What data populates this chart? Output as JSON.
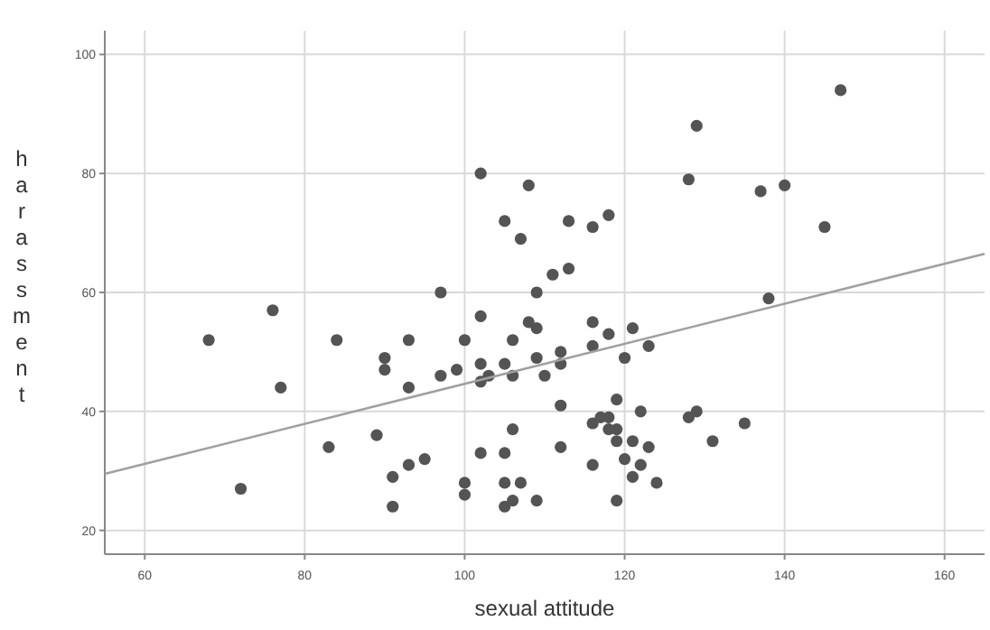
{
  "chart_data": {
    "type": "scatter",
    "xlabel": "sexual attitude",
    "ylabel": "harassment",
    "xlim": [
      55,
      165
    ],
    "ylim": [
      16,
      104
    ],
    "xticks": [
      60,
      80,
      100,
      120,
      140,
      160
    ],
    "yticks": [
      20,
      40,
      60,
      80,
      100
    ],
    "grid": true,
    "series": [
      {
        "marker": "circle",
        "color": "#545454",
        "x": [
          68,
          72,
          76,
          77,
          83,
          84,
          89,
          90,
          90,
          91,
          91,
          93,
          93,
          93,
          95,
          97,
          97,
          99,
          100,
          100,
          100,
          102,
          102,
          102,
          102,
          102,
          103,
          105,
          105,
          105,
          105,
          105,
          106,
          106,
          106,
          106,
          107,
          107,
          108,
          108,
          109,
          109,
          109,
          109,
          110,
          111,
          112,
          112,
          112,
          112,
          113,
          113,
          116,
          116,
          116,
          116,
          116,
          117,
          118,
          118,
          118,
          118,
          119,
          119,
          119,
          119,
          120,
          120,
          121,
          121,
          121,
          122,
          122,
          123,
          123,
          124,
          128,
          128,
          129,
          129,
          131,
          135,
          137,
          138,
          140,
          145,
          147
        ],
        "values": [
          52,
          27,
          57,
          44,
          34,
          52,
          36,
          49,
          47,
          29,
          24,
          52,
          44,
          31,
          32,
          60,
          46,
          47,
          52,
          28,
          26,
          56,
          48,
          45,
          33,
          80,
          46,
          48,
          33,
          28,
          24,
          72,
          52,
          46,
          37,
          25,
          28,
          69,
          55,
          78,
          54,
          49,
          25,
          60,
          46,
          63,
          50,
          48,
          41,
          34,
          72,
          64,
          55,
          51,
          38,
          31,
          71,
          39,
          53,
          39,
          37,
          73,
          42,
          37,
          35,
          25,
          49,
          32,
          54,
          35,
          29,
          40,
          31,
          51,
          34,
          28,
          79,
          39,
          88,
          40,
          35,
          38,
          77,
          59,
          78,
          71,
          94
        ]
      },
      {
        "type": "line",
        "color": "#a0a0a0",
        "x": [
          55,
          165
        ],
        "values": [
          29.5,
          66.5
        ]
      }
    ]
  }
}
